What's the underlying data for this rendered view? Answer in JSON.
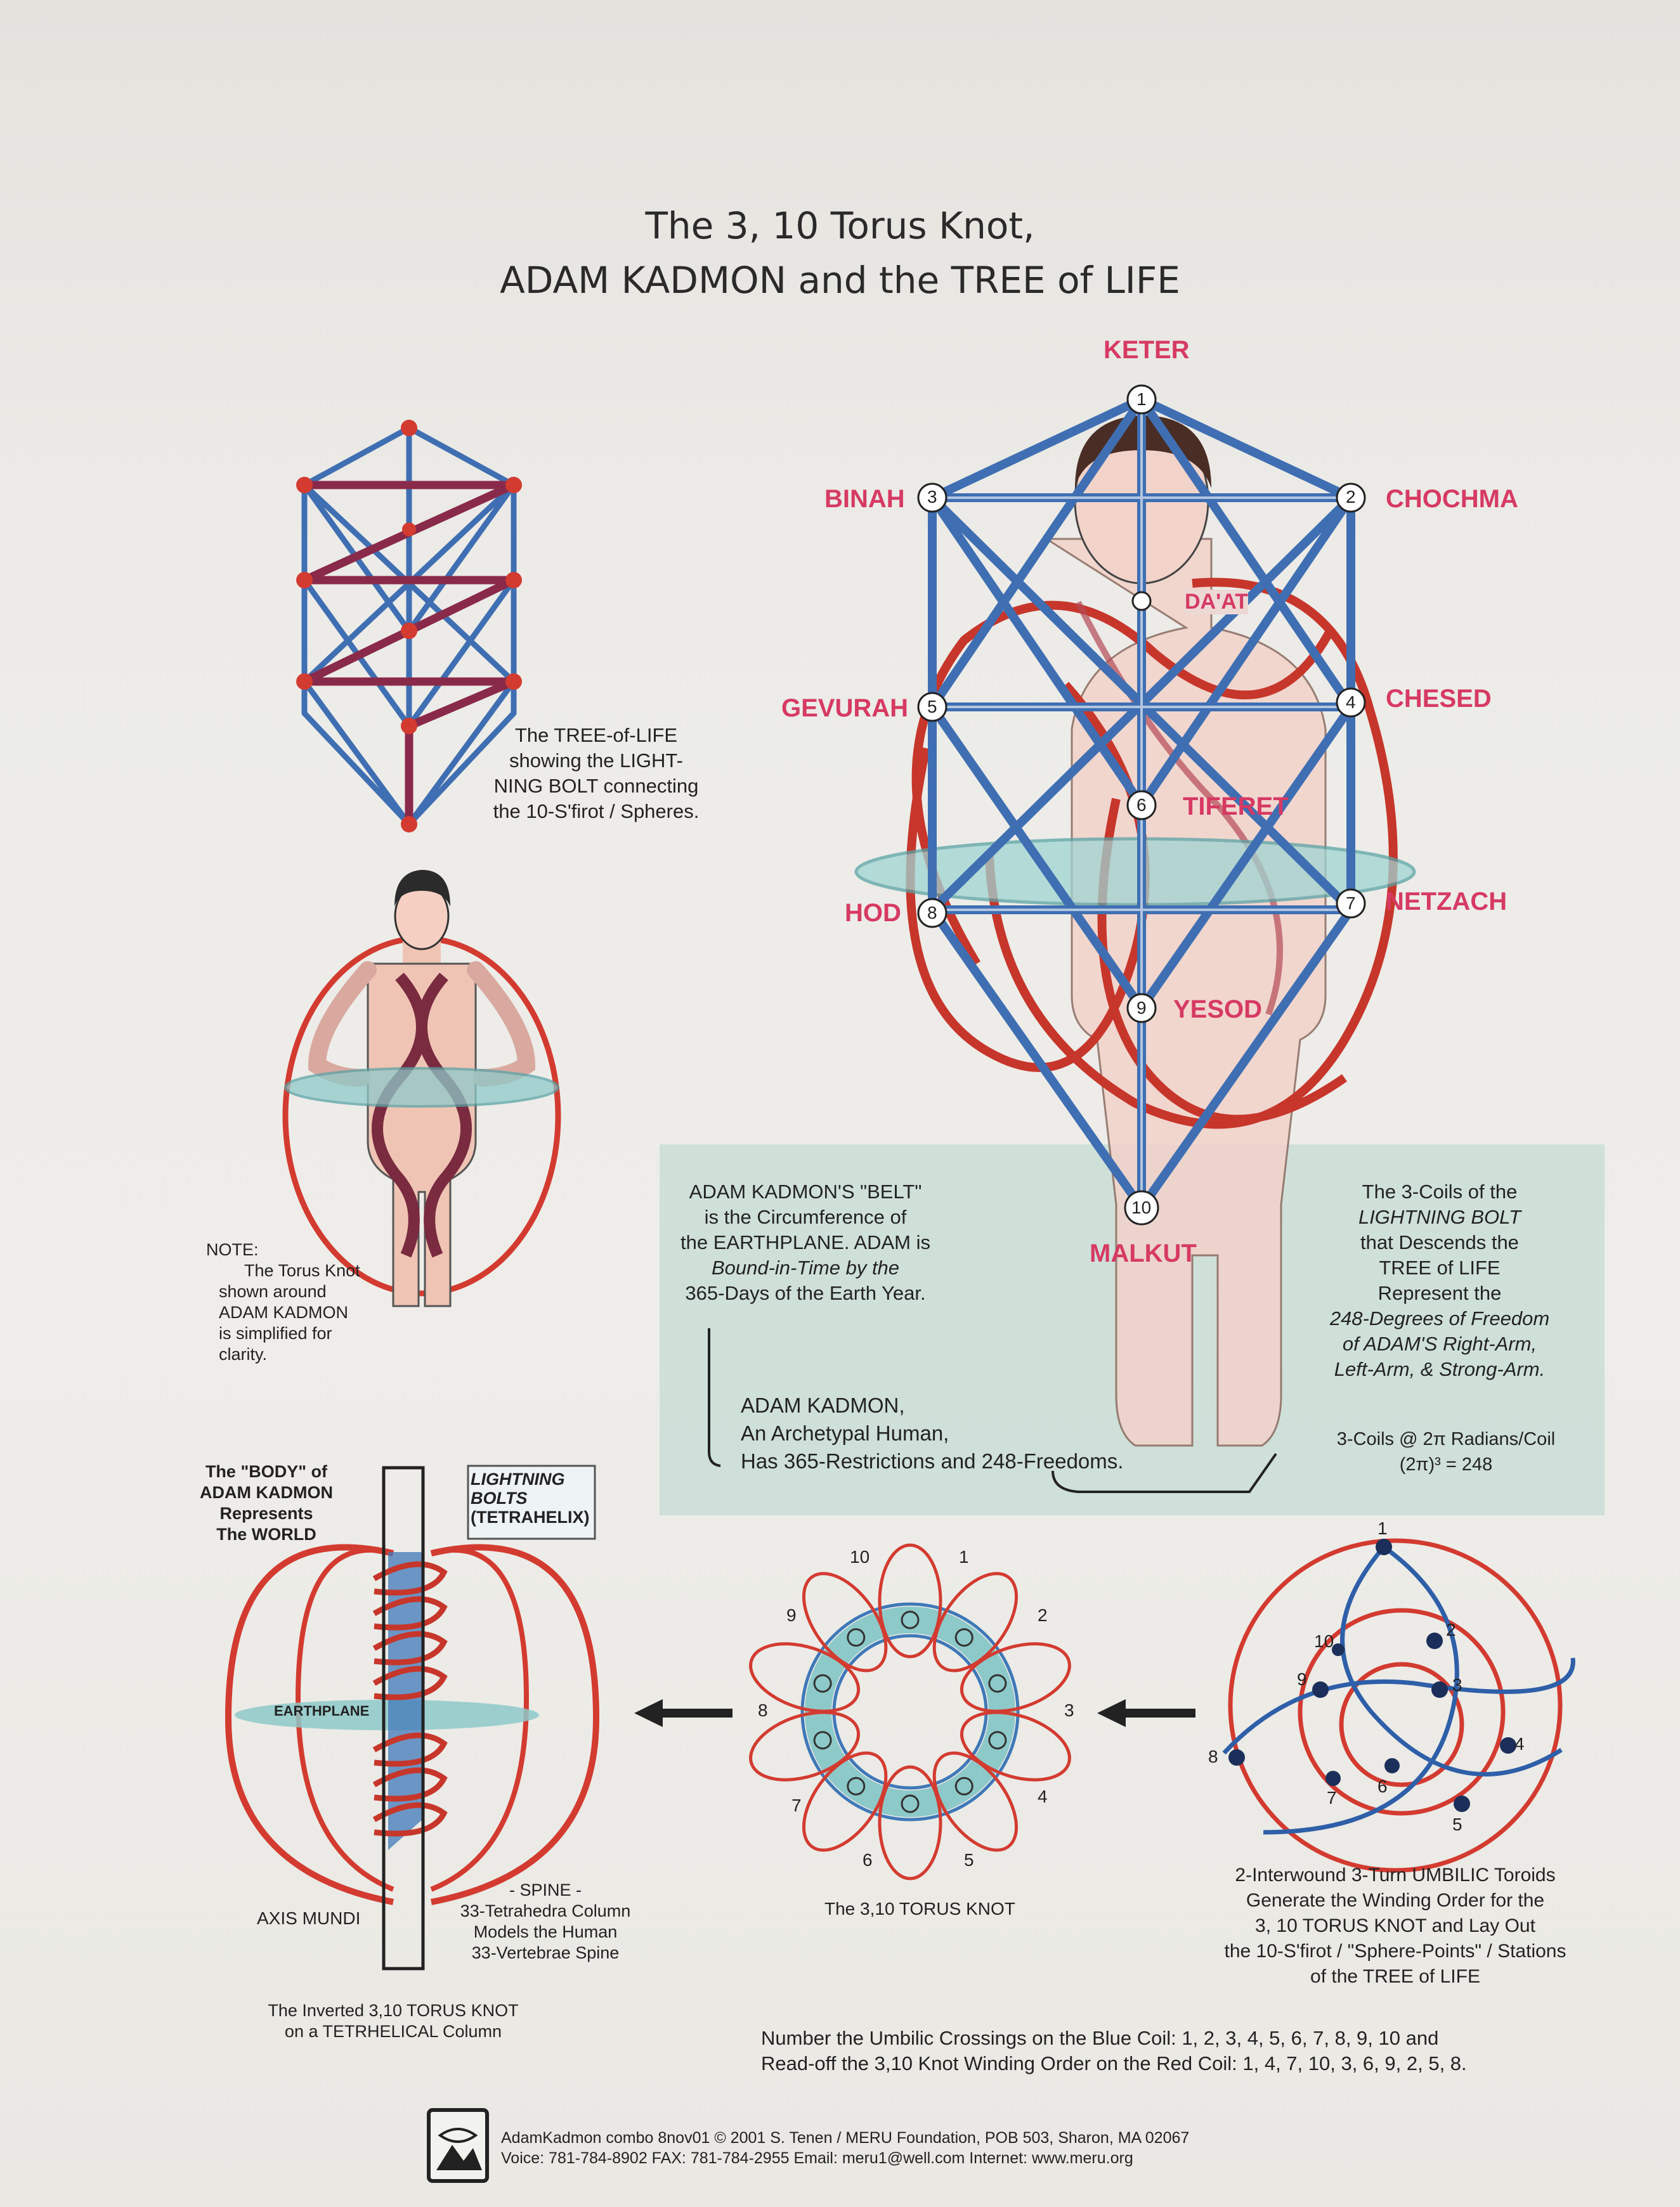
{
  "title": {
    "line1": "The 3, 10 Torus Knot,",
    "line2": "ADAM KADMON and the TREE of LIFE"
  },
  "sefirot": {
    "keter": "KETER",
    "binah": "BINAH",
    "chochma": "CHOCHMA",
    "daat": "DA'AT",
    "gevurah": "GEVURAH",
    "chesed": "CHESED",
    "tiferet": "TIFERET",
    "hod": "HOD",
    "netzach": "NETZACH",
    "yesod": "YESOD",
    "malkut": "MALKUT"
  },
  "node_numbers": [
    "1",
    "2",
    "3",
    "4",
    "5",
    "6",
    "7",
    "8",
    "9",
    "10"
  ],
  "tree_caption": [
    "The TREE-of-LIFE",
    "showing the LIGHT-",
    "NING BOLT connecting",
    "the 10-S'firot / Spheres."
  ],
  "note_caption": [
    "NOTE:",
    "The Torus Knot",
    "shown around",
    "ADAM KADMON",
    "is simplified for",
    "clarity."
  ],
  "belt_caption": [
    "ADAM KADMON'S \"BELT\"",
    "is the Circumference of",
    "the EARTHPLANE. ADAM is",
    "Bound-in-Time by the",
    "365-Days of the Earth Year."
  ],
  "kadmon_caption": [
    "ADAM KADMON,",
    "An Archetypal Human,",
    "Has 365-Restrictions and 248-Freedoms."
  ],
  "coils_caption": [
    "The 3-Coils of the",
    "LIGHTNING BOLT",
    "that Descends the",
    "TREE of LIFE",
    "Represent the",
    "248-Degrees of Freedom",
    "of ADAM'S Right-Arm,",
    "Left-Arm, & Strong-Arm."
  ],
  "coils_formula": {
    "line1": "3-Coils @ 2π Radians/Coil",
    "line2": "(2π)³ = 248"
  },
  "body_caption": [
    "The \"BODY\" of",
    "ADAM KADMON",
    "Represents",
    "The WORLD"
  ],
  "lightning_label": [
    "LIGHTNING",
    "BOLTS",
    "(TETRAHELIX)"
  ],
  "earthplane_label": "EARTHPLANE",
  "axis_mundi": "AXIS MUNDI",
  "spine_caption": [
    "- SPINE -",
    "33-Tetrahedra Column",
    "Models the Human",
    "33-Vertebrae Spine"
  ],
  "inverted_caption": [
    "The Inverted 3,10 TORUS KNOT",
    "on a TETRHELICAL Column"
  ],
  "torus_knot_label": "The 3,10 TORUS KNOT",
  "umbilic_caption": [
    "2-Interwound 3-Turn UMBILIC Toroids",
    "Generate the Winding Order for the",
    "3, 10 TORUS KNOT and Lay Out",
    "the 10-S'firot / \"Sphere-Points\" / Stations",
    "of the TREE of LIFE"
  ],
  "bottom_text": [
    "Number the Umbilic Crossings on the Blue Coil: 1, 2, 3, 4, 5, 6, 7, 8, 9, 10  and",
    "Read-off the 3,10 Knot Winding Order on the Red Coil: 1, 4, 7, 10, 3, 6, 9, 2, 5, 8."
  ],
  "footer": [
    "AdamKadmon combo 8nov01 © 2001 S. Tenen / MERU Foundation, POB 503, Sharon, MA 02067",
    "Voice: 781-784-8902  FAX: 781-784-2955  Email: meru1@well.com   Internet: www.meru.org"
  ],
  "colors": {
    "red": "#d33b30",
    "blue": "#3f78b8",
    "pink_label": "#d63a63",
    "belt": "#8ec9c9",
    "skin": "#f0c4b4"
  }
}
